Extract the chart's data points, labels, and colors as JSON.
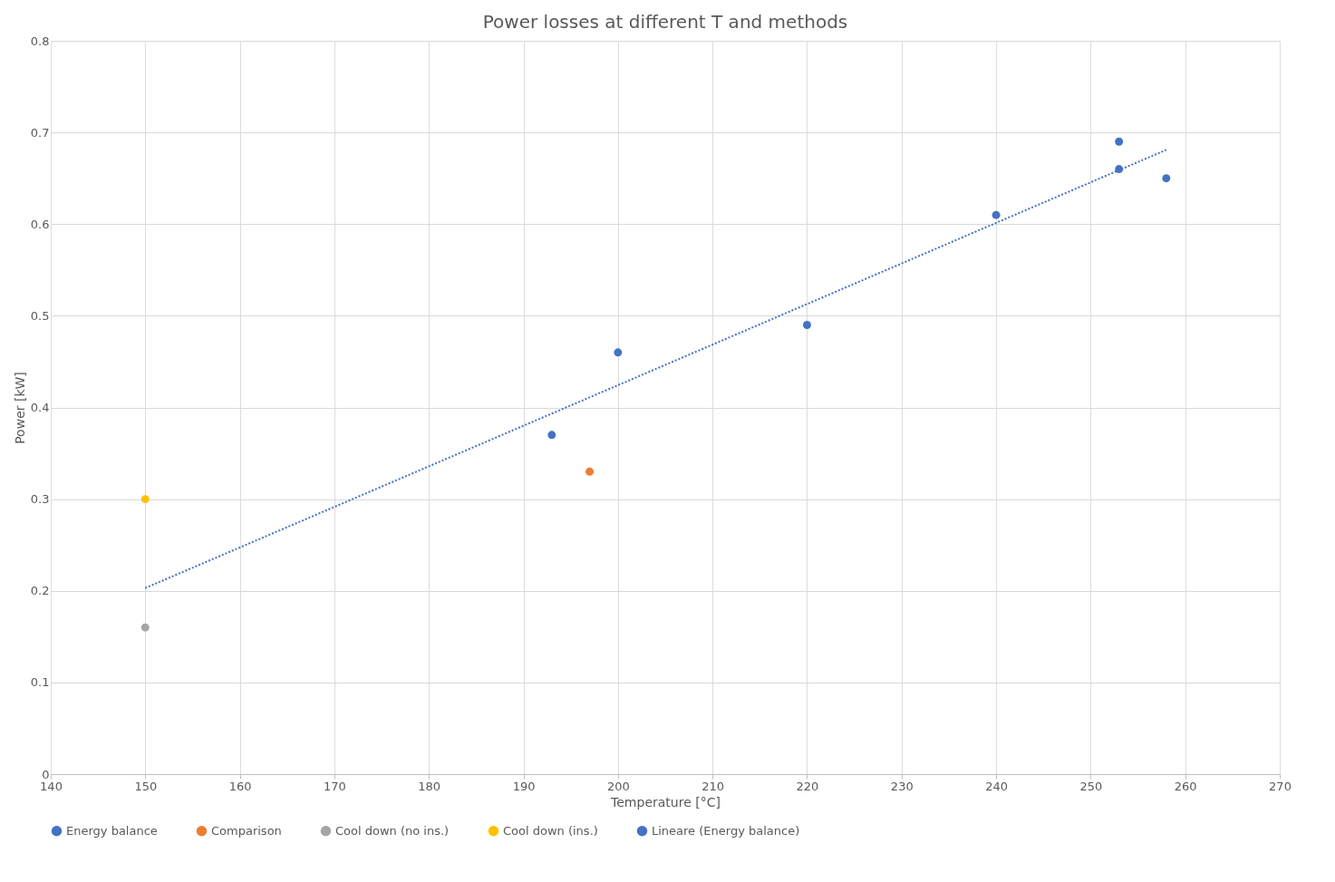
{
  "chart_data": {
    "type": "scatter",
    "title": "Power losses at different T and methods",
    "xlabel": "Temperature [°C]",
    "ylabel": "Power [kW]",
    "xlim": [
      140,
      270
    ],
    "xticks": [
      140,
      150,
      160,
      170,
      180,
      190,
      200,
      210,
      220,
      230,
      240,
      250,
      260,
      270
    ],
    "ylim": [
      0,
      0.8
    ],
    "yticks": [
      0,
      0.1,
      0.2,
      0.3,
      0.4,
      0.5,
      0.6,
      0.7,
      0.8
    ],
    "grid": true,
    "legend": "bottom",
    "marker": "circle",
    "series": [
      {
        "name": "Energy balance",
        "color": "#4472c4",
        "x": [
          193,
          200,
          220,
          240,
          253,
          253,
          258
        ],
        "values": [
          0.37,
          0.46,
          0.49,
          0.61,
          0.69,
          0.66,
          0.65
        ]
      },
      {
        "name": "Comparison",
        "color": "#ed7d31",
        "x": [
          197
        ],
        "values": [
          0.33
        ]
      },
      {
        "name": "Cool down (no ins.)",
        "color": "#a5a5a5",
        "x": [
          150
        ],
        "values": [
          0.16
        ]
      },
      {
        "name": "Cool down (ins.)",
        "color": "#ffc000",
        "x": [
          150
        ],
        "values": [
          0.3
        ]
      },
      {
        "name": "Lineare (Energy balance)",
        "type": "line",
        "marker": "none",
        "line_style": "dotted",
        "color": "#4472c4",
        "x": [
          150,
          258
        ],
        "values": [
          0.203,
          0.681
        ]
      }
    ]
  }
}
